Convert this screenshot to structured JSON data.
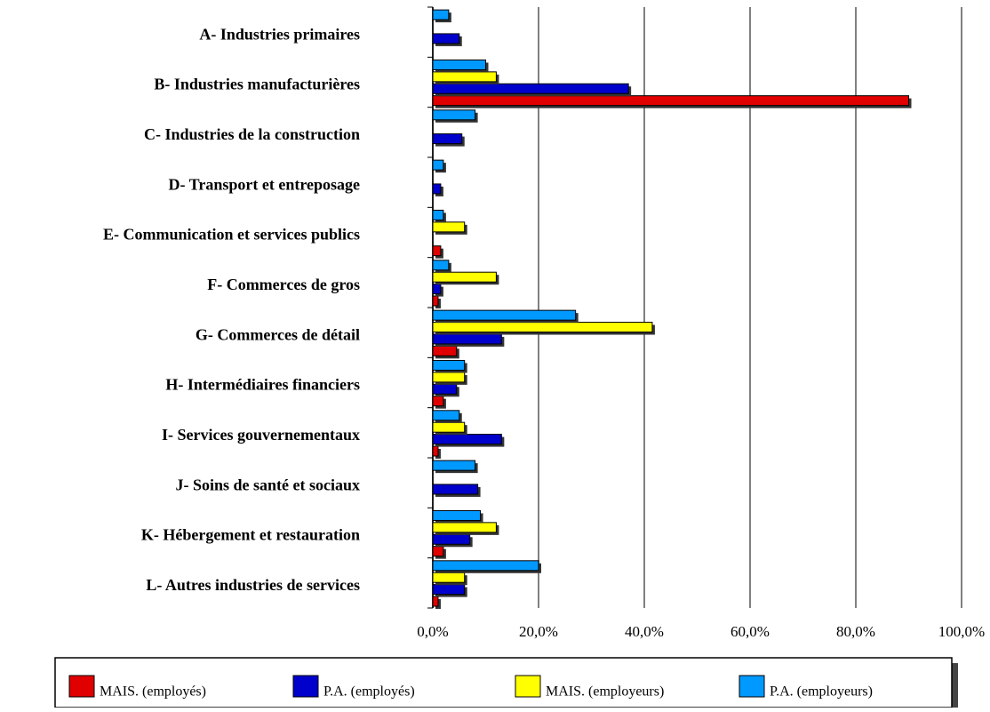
{
  "chart_data": {
    "type": "bar",
    "orientation": "horizontal",
    "categories": [
      "A- Industries primaires",
      "B- Industries manufacturières",
      "C- Industries de la construction",
      "D- Transport et entreposage",
      "E- Communication et services publics",
      "F- Commerces de gros",
      "G- Commerces de détail",
      "H- Intermédiaires financiers",
      "I- Services gouvernementaux",
      "J- Soins de santé et sociaux",
      "K- Hébergement et restauration",
      "L- Autres industries de services"
    ],
    "series": [
      {
        "name": "MAIS. (employés)",
        "color": "#e00000",
        "values": [
          0,
          90,
          0,
          0,
          1.5,
          1,
          4.5,
          2,
          1,
          0,
          2,
          1
        ]
      },
      {
        "name": "P.A. (employés)",
        "color": "#0000cc",
        "values": [
          5,
          37,
          5.5,
          1.5,
          0,
          1.5,
          13,
          4.5,
          13,
          8.5,
          7,
          6
        ]
      },
      {
        "name": "MAIS. (employeurs)",
        "color": "#ffff00",
        "values": [
          0,
          12,
          0,
          0,
          6,
          12,
          41.5,
          6,
          6,
          0,
          12,
          6
        ]
      },
      {
        "name": "P.A. (employeurs)",
        "color": "#0099ff",
        "values": [
          3,
          10,
          8,
          2,
          2,
          3,
          27,
          6,
          5,
          8,
          9,
          20
        ]
      }
    ],
    "xlim": [
      0,
      100
    ],
    "xticks": [
      {
        "value": 0,
        "label": "0,0%"
      },
      {
        "value": 20,
        "label": "20,0%"
      },
      {
        "value": 40,
        "label": "40,0%"
      },
      {
        "value": 60,
        "label": "60,0%"
      },
      {
        "value": 80,
        "label": "80,0%"
      },
      {
        "value": 100,
        "label": "100,0%"
      }
    ],
    "grid": true,
    "legend": "bottom"
  }
}
